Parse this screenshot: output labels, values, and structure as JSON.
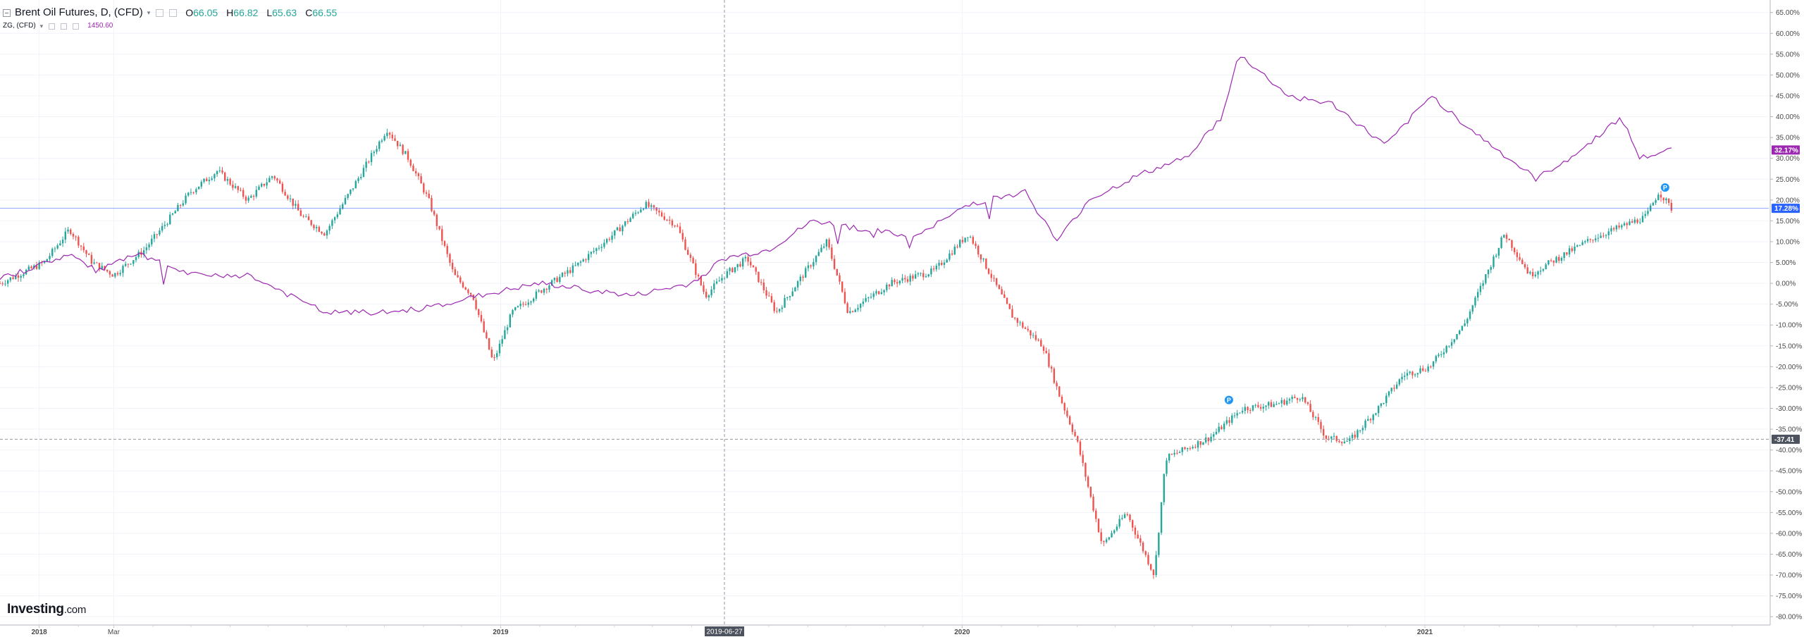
{
  "legend": {
    "symbol": "Brent Oil Futures, D, (CFD)",
    "open_label": "O",
    "open": "66.05",
    "high_label": "H",
    "high": "66.82",
    "low_label": "L",
    "low": "65.63",
    "close_label": "C",
    "close": "66.55",
    "compare_symbol": "ZG, (CFD)",
    "compare_value": "1450.60"
  },
  "logo": {
    "name": "Investing",
    "suffix": ".com"
  },
  "colors": {
    "up": "#26a69a",
    "down": "#ef5350",
    "compare": "#9c27b0",
    "last_line": "#2962ff",
    "grid": "#f0f3fa",
    "crosshair": "#9598a1",
    "axis_text": "#4a4a4a"
  },
  "crosshair": {
    "x_label": "2019-06-27",
    "y_label": "-37.41"
  },
  "badges": {
    "compare": "32.17%",
    "primary": "17.28%"
  },
  "markers": [
    {
      "label": "P"
    },
    {
      "label": "P"
    }
  ],
  "chart_data": {
    "type": "line",
    "title": "",
    "xlabel": "",
    "ylabel": "",
    "y_unit": "%",
    "ylim": [
      -82,
      68
    ],
    "x_range": [
      "2017-12-01",
      "2021-09-30"
    ],
    "grid": true,
    "legend": "top-left",
    "y_ticks": [
      65,
      60,
      55,
      50,
      45,
      40,
      35,
      30,
      25,
      20,
      15,
      10,
      5,
      0,
      -5,
      -10,
      -15,
      -20,
      -25,
      -30,
      -35,
      -40,
      -45,
      -50,
      -55,
      -60,
      -65,
      -70,
      -75,
      -80
    ],
    "x_ticks": [
      {
        "date": "2018-01-01",
        "label": "2018",
        "bold": true
      },
      {
        "date": "2018-03-01",
        "label": "Mar",
        "bold": false
      },
      {
        "date": "2019-01-01",
        "label": "2019",
        "bold": true
      },
      {
        "date": "2020-01-01",
        "label": "2020",
        "bold": true
      },
      {
        "date": "2021-01-01",
        "label": "2021",
        "bold": true
      }
    ],
    "series": [
      {
        "name": "Brent Oil Futures, D, (CFD)",
        "style": "candlestick",
        "points": [
          [
            "2017-12-01",
            0
          ],
          [
            "2018-01-05",
            5
          ],
          [
            "2018-01-25",
            13
          ],
          [
            "2018-02-12",
            5
          ],
          [
            "2018-03-01",
            2
          ],
          [
            "2018-03-25",
            8
          ],
          [
            "2018-04-10",
            14
          ],
          [
            "2018-05-01",
            22
          ],
          [
            "2018-05-22",
            27
          ],
          [
            "2018-06-15",
            20
          ],
          [
            "2018-07-05",
            26
          ],
          [
            "2018-07-28",
            16
          ],
          [
            "2018-08-15",
            12
          ],
          [
            "2018-09-10",
            25
          ],
          [
            "2018-10-03",
            37
          ],
          [
            "2018-10-20",
            30
          ],
          [
            "2018-11-05",
            20
          ],
          [
            "2018-11-25",
            2
          ],
          [
            "2018-12-10",
            -3
          ],
          [
            "2018-12-26",
            -19
          ],
          [
            "2019-01-10",
            -7
          ],
          [
            "2019-02-05",
            -1
          ],
          [
            "2019-03-01",
            4
          ],
          [
            "2019-04-01",
            12
          ],
          [
            "2019-04-25",
            19
          ],
          [
            "2019-05-20",
            14
          ],
          [
            "2019-06-12",
            -3
          ],
          [
            "2019-06-27",
            2
          ],
          [
            "2019-07-15",
            6
          ],
          [
            "2019-08-07",
            -7
          ],
          [
            "2019-09-16",
            10
          ],
          [
            "2019-10-03",
            -7
          ],
          [
            "2019-11-05",
            0
          ],
          [
            "2019-12-10",
            3
          ],
          [
            "2020-01-06",
            12
          ],
          [
            "2020-01-20",
            4
          ],
          [
            "2020-02-10",
            -8
          ],
          [
            "2020-03-05",
            -15
          ],
          [
            "2020-03-18",
            -27
          ],
          [
            "2020-04-01",
            -38
          ],
          [
            "2020-04-21",
            -63
          ],
          [
            "2020-05-10",
            -55
          ],
          [
            "2020-06-01",
            -70
          ],
          [
            "2020-06-10",
            -42
          ],
          [
            "2020-07-15",
            -37
          ],
          [
            "2020-08-10",
            -30
          ],
          [
            "2020-09-05",
            -29
          ],
          [
            "2020-09-25",
            -27
          ],
          [
            "2020-10-15",
            -37
          ],
          [
            "2020-11-02",
            -38
          ],
          [
            "2020-11-25",
            -30
          ],
          [
            "2020-12-15",
            -22
          ],
          [
            "2021-01-05",
            -20
          ],
          [
            "2021-02-01",
            -10
          ],
          [
            "2021-03-05",
            12
          ],
          [
            "2021-03-25",
            2
          ],
          [
            "2021-04-10",
            5
          ],
          [
            "2021-05-15",
            11
          ],
          [
            "2021-06-25",
            16
          ],
          [
            "2021-07-05",
            22
          ],
          [
            "2021-07-15",
            18
          ]
        ]
      },
      {
        "name": "ZG, (CFD)",
        "style": "line",
        "points": [
          [
            "2017-12-01",
            1
          ],
          [
            "2018-01-25",
            7
          ],
          [
            "2018-02-15",
            3
          ],
          [
            "2018-03-20",
            7
          ],
          [
            "2018-05-01",
            2
          ],
          [
            "2018-06-15",
            2
          ],
          [
            "2018-08-15",
            -7
          ],
          [
            "2018-10-01",
            -7
          ],
          [
            "2018-11-01",
            -6
          ],
          [
            "2018-12-15",
            -3
          ],
          [
            "2019-02-01",
            0
          ],
          [
            "2019-04-15",
            -3
          ],
          [
            "2019-06-01",
            0
          ],
          [
            "2019-06-27",
            6
          ],
          [
            "2019-08-01",
            8
          ],
          [
            "2019-09-05",
            15
          ],
          [
            "2019-10-15",
            13
          ],
          [
            "2019-11-25",
            11
          ],
          [
            "2020-01-06",
            19
          ],
          [
            "2020-02-20",
            22
          ],
          [
            "2020-03-16",
            10
          ],
          [
            "2020-04-10",
            20
          ],
          [
            "2020-05-20",
            26
          ],
          [
            "2020-06-25",
            30
          ],
          [
            "2020-07-25",
            40
          ],
          [
            "2020-08-07",
            55
          ],
          [
            "2020-09-15",
            45
          ],
          [
            "2020-10-20",
            43
          ],
          [
            "2020-12-01",
            33
          ],
          [
            "2021-01-06",
            45
          ],
          [
            "2021-02-10",
            36
          ],
          [
            "2021-03-30",
            25
          ],
          [
            "2021-05-05",
            32
          ],
          [
            "2021-06-05",
            40
          ],
          [
            "2021-06-20",
            30
          ],
          [
            "2021-07-15",
            32
          ]
        ]
      }
    ]
  }
}
